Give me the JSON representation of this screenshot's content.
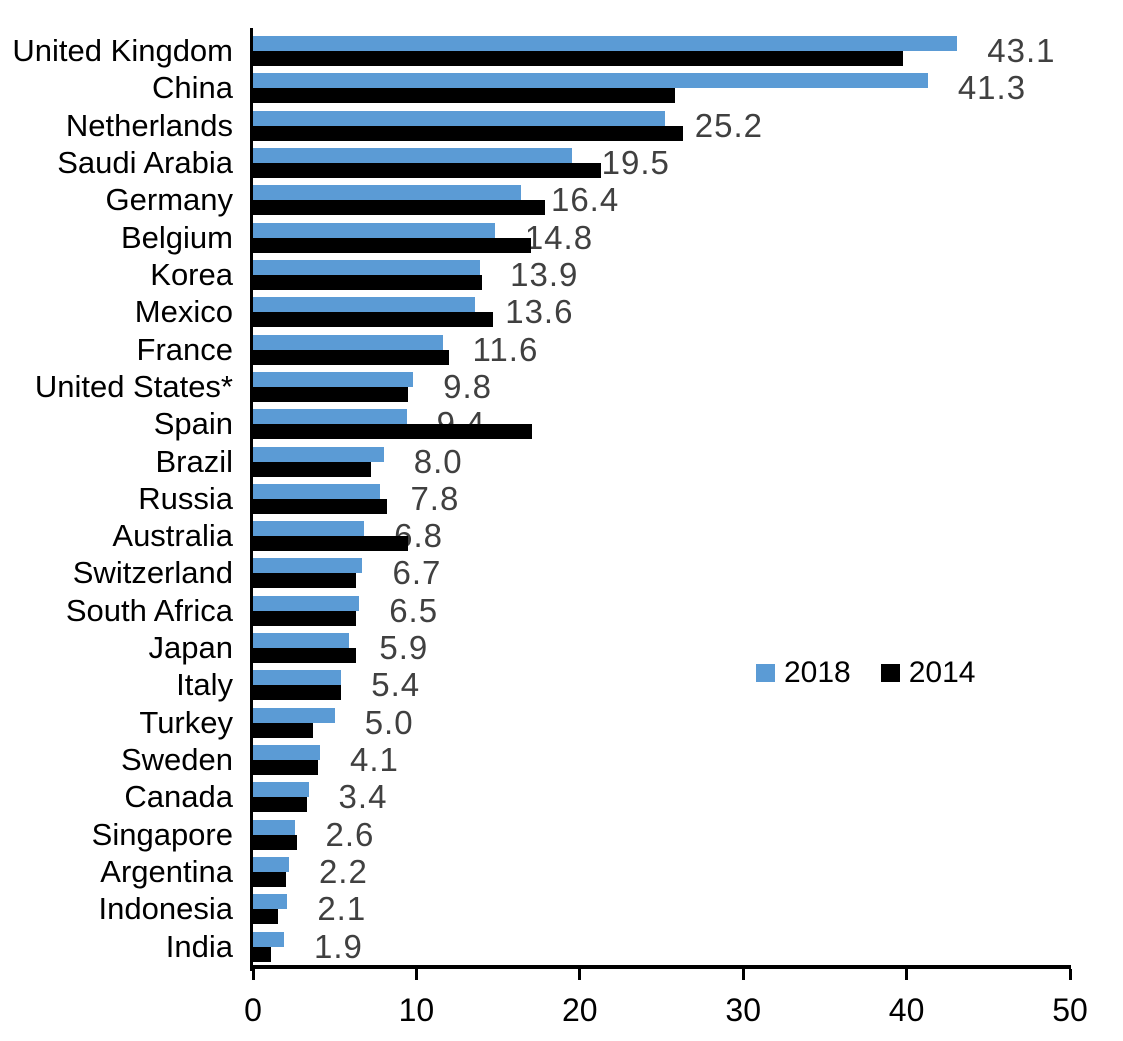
{
  "chart_data": {
    "type": "bar",
    "orientation": "horizontal",
    "title": "",
    "xlabel": "",
    "ylabel": "",
    "xlim": [
      0,
      50
    ],
    "xticks": [
      "0",
      "10",
      "20",
      "30",
      "40",
      "50"
    ],
    "xtick_values": [
      0,
      10,
      20,
      30,
      40,
      50
    ],
    "grid": "off",
    "legend_position": "middle-right",
    "value_label_color": "#404040",
    "categories": [
      "United Kingdom",
      "China",
      "Netherlands",
      "Saudi Arabia",
      "Germany",
      "Belgium",
      "Korea",
      "Mexico",
      "France",
      "United States*",
      "Spain",
      "Brazil",
      "Russia",
      "Australia",
      "Switzerland",
      "South Africa",
      "Japan",
      "Italy",
      "Turkey",
      "Sweden",
      "Canada",
      "Singapore",
      "Argentina",
      "Indonesia",
      "India"
    ],
    "series": [
      {
        "name": "2018",
        "color": "#5B9BD5",
        "values": [
          43.1,
          41.3,
          25.2,
          19.5,
          16.4,
          14.8,
          13.9,
          13.6,
          11.6,
          9.8,
          9.4,
          8.0,
          7.8,
          6.8,
          6.7,
          6.5,
          5.9,
          5.4,
          5.0,
          4.1,
          3.4,
          2.6,
          2.2,
          2.1,
          1.9
        ],
        "data_labels": [
          "43.1",
          "41.3",
          "25.2",
          "19.5",
          "16.4",
          "14.8",
          "13.9",
          "13.6",
          "11.6",
          "9.8",
          "9.4",
          "8.0",
          "7.8",
          "6.8",
          "6.7",
          "6.5",
          "5.9",
          "5.4",
          "5.0",
          "4.1",
          "3.4",
          "2.6",
          "2.2",
          "2.1",
          "1.9"
        ]
      },
      {
        "name": "2014",
        "color": "#000000",
        "values": [
          39.8,
          25.8,
          26.3,
          21.3,
          17.9,
          17.0,
          14.0,
          14.7,
          12.0,
          9.5,
          17.1,
          7.2,
          8.2,
          9.5,
          6.3,
          6.3,
          6.3,
          5.4,
          3.7,
          4.0,
          3.3,
          2.7,
          2.0,
          1.5,
          1.1
        ],
        "data_labels": []
      }
    ]
  }
}
